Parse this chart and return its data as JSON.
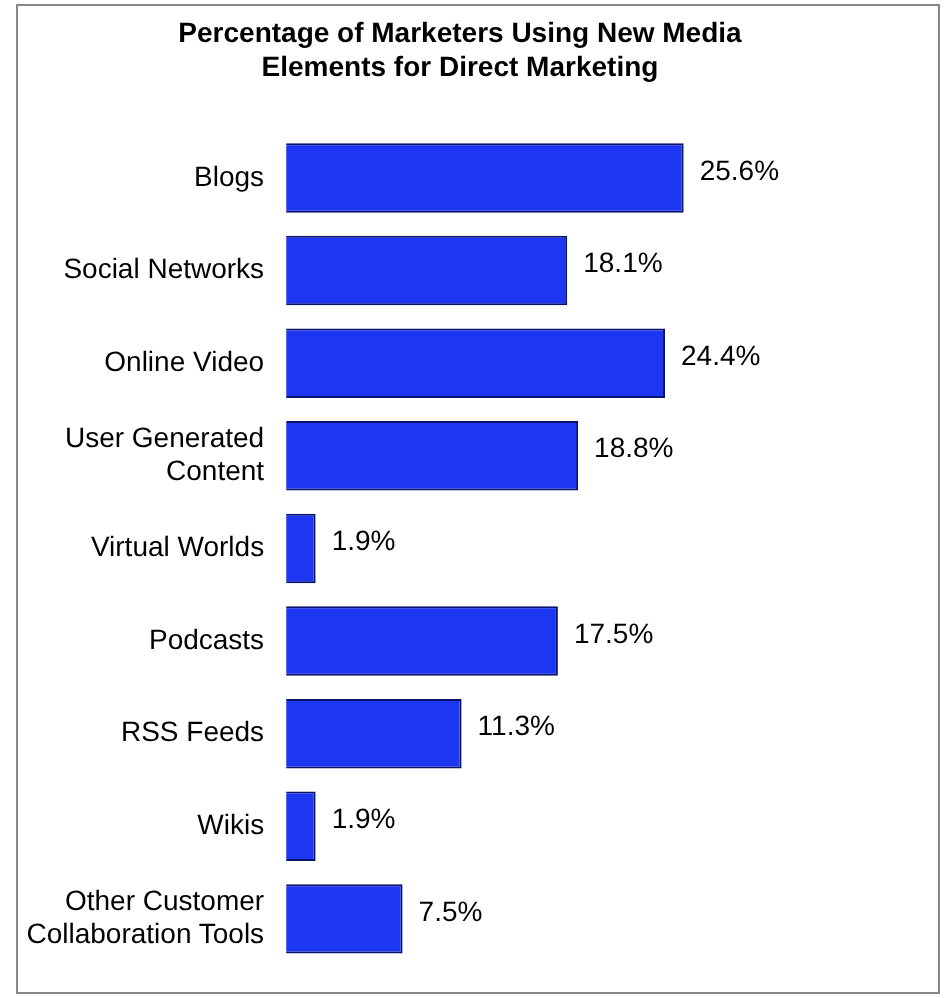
{
  "chart_data": {
    "type": "bar",
    "orientation": "horizontal",
    "title": "Percentage of Marketers Using New Media Elements for Direct Marketing",
    "categories": [
      "Blogs",
      "Social Networks",
      "Online Video",
      "User Generated Content",
      "Virtual Worlds",
      "Podcasts",
      "RSS Feeds",
      "Wikis",
      "Other Customer Collaboration Tools"
    ],
    "values": [
      25.6,
      18.1,
      24.4,
      18.8,
      1.9,
      17.5,
      11.3,
      1.9,
      7.5
    ],
    "value_labels": [
      "25.6%",
      "18.1%",
      "24.4%",
      "18.8%",
      "1.9%",
      "17.5%",
      "11.3%",
      "1.9%",
      "7.5%"
    ],
    "color": "#1c36f2"
  }
}
